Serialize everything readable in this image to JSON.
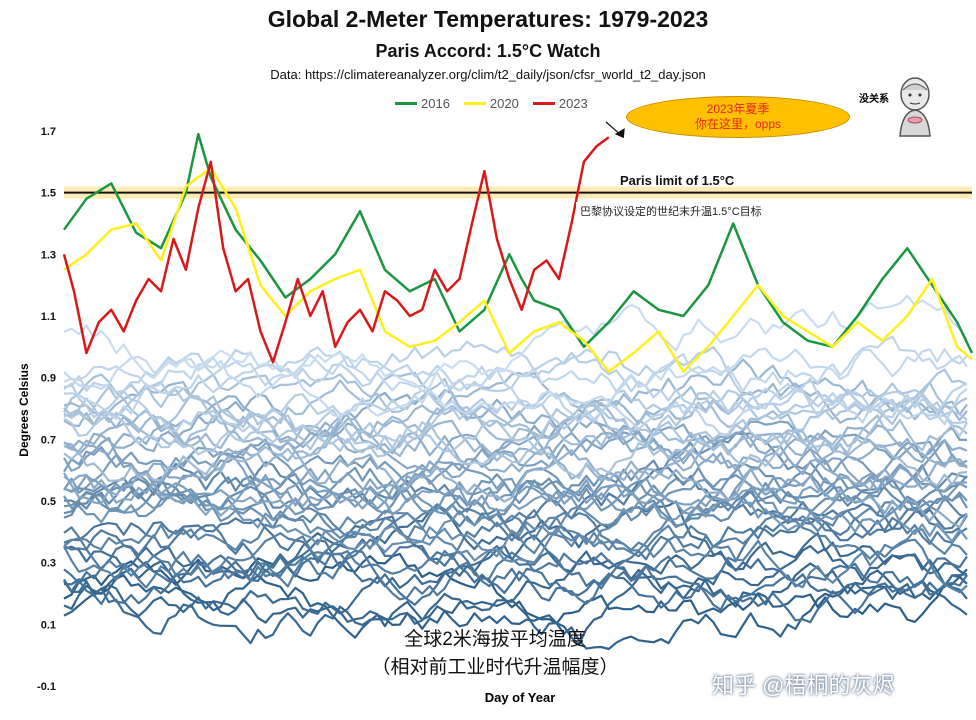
{
  "title": "Global 2-Meter Temperatures: 1979-2023",
  "subtitle": "Paris Accord: 1.5°C Watch",
  "source": "Data: https://climatereanalyzer.org/clim/t2_daily/json/cfsr_world_t2_day.json",
  "annotations": {
    "bubble_line1": "2023年夏季",
    "bubble_line2": "你在这里，opps",
    "paris_limit": "Paris limit of 1.5°C",
    "paris_target_cn": "巴黎协议设定的世纪末升温1.5°C目标",
    "caption_line1": "全球2米海拔平均温度",
    "caption_line2": "（相对前工业时代升温幅度）",
    "sticker_text": "没关系",
    "watermark": "知乎 @梧桐的灰烬"
  },
  "colors": {
    "y2016": "#1a9641",
    "y2020": "#ffef1a",
    "y2023": "#d7191c",
    "paris_line": "#111111",
    "paris_glow": "#ffe9a8",
    "bubble": "#ffc000",
    "history_dark": "#2b5f8a",
    "history_light": "#c9dcf0"
  },
  "chart_data": {
    "type": "line",
    "title": "Global 2-Meter Temperatures: 1979-2023",
    "subtitle": "Paris Accord: 1.5°C Watch",
    "xlabel": "Day of Year",
    "ylabel": "Degrees Celsius",
    "ylim": [
      -0.1,
      1.75
    ],
    "xlim": [
      1,
      366
    ],
    "yticks": [
      "1.7",
      "1.5",
      "1.3",
      "1.1",
      "0.9",
      "0.7",
      "0.5",
      "0.3",
      "0.1",
      "-0.1"
    ],
    "ytick_values": [
      1.7,
      1.5,
      1.3,
      1.1,
      0.9,
      0.7,
      0.5,
      0.3,
      0.1,
      -0.1
    ],
    "reference_line": {
      "label": "Paris limit of 1.5°C",
      "value": 1.5
    },
    "legend_position": "top-center",
    "grid": false,
    "series": [
      {
        "name": "2016",
        "color": "#1a9641",
        "x": [
          1,
          10,
          20,
          30,
          40,
          50,
          55,
          60,
          70,
          80,
          90,
          100,
          110,
          120,
          130,
          140,
          150,
          160,
          170,
          180,
          185,
          190,
          200,
          210,
          220,
          230,
          240,
          250,
          260,
          270,
          280,
          290,
          300,
          310,
          320,
          330,
          340,
          350,
          360,
          366
        ],
        "y": [
          1.38,
          1.48,
          1.53,
          1.37,
          1.32,
          1.5,
          1.69,
          1.55,
          1.38,
          1.28,
          1.16,
          1.22,
          1.3,
          1.44,
          1.25,
          1.18,
          1.22,
          1.05,
          1.12,
          1.3,
          1.22,
          1.15,
          1.12,
          1.0,
          1.08,
          1.18,
          1.12,
          1.1,
          1.2,
          1.4,
          1.2,
          1.08,
          1.02,
          1.0,
          1.1,
          1.22,
          1.32,
          1.2,
          1.08,
          0.98
        ]
      },
      {
        "name": "2020",
        "color": "#ffef1a",
        "x": [
          1,
          10,
          20,
          30,
          40,
          50,
          60,
          70,
          80,
          90,
          100,
          110,
          120,
          130,
          140,
          150,
          160,
          170,
          180,
          190,
          200,
          210,
          220,
          230,
          240,
          250,
          260,
          270,
          280,
          290,
          300,
          310,
          320,
          330,
          340,
          350,
          360,
          366
        ],
        "y": [
          1.25,
          1.3,
          1.38,
          1.4,
          1.28,
          1.52,
          1.58,
          1.45,
          1.2,
          1.1,
          1.18,
          1.22,
          1.25,
          1.05,
          1.0,
          1.02,
          1.08,
          1.15,
          0.98,
          1.05,
          1.08,
          1.02,
          0.92,
          0.98,
          1.05,
          0.92,
          1.0,
          1.1,
          1.2,
          1.1,
          1.05,
          1.0,
          1.08,
          1.02,
          1.1,
          1.22,
          1.0,
          0.96
        ]
      },
      {
        "name": "2023",
        "color": "#d7191c",
        "x": [
          1,
          5,
          10,
          15,
          20,
          25,
          30,
          35,
          40,
          45,
          50,
          55,
          60,
          65,
          70,
          75,
          80,
          85,
          90,
          95,
          100,
          105,
          110,
          115,
          120,
          125,
          130,
          135,
          140,
          145,
          150,
          155,
          160,
          165,
          170,
          175,
          180,
          185,
          190,
          195,
          200,
          205,
          210,
          215,
          220
        ],
        "y": [
          1.3,
          1.18,
          0.98,
          1.08,
          1.12,
          1.05,
          1.15,
          1.22,
          1.18,
          1.35,
          1.25,
          1.45,
          1.6,
          1.32,
          1.18,
          1.22,
          1.05,
          0.95,
          1.08,
          1.22,
          1.1,
          1.18,
          1.0,
          1.08,
          1.12,
          1.05,
          1.18,
          1.15,
          1.1,
          1.12,
          1.25,
          1.18,
          1.22,
          1.4,
          1.57,
          1.35,
          1.22,
          1.12,
          1.25,
          1.28,
          1.22,
          1.4,
          1.6,
          1.65,
          1.68
        ]
      }
    ],
    "historical_years_count": 42
  }
}
